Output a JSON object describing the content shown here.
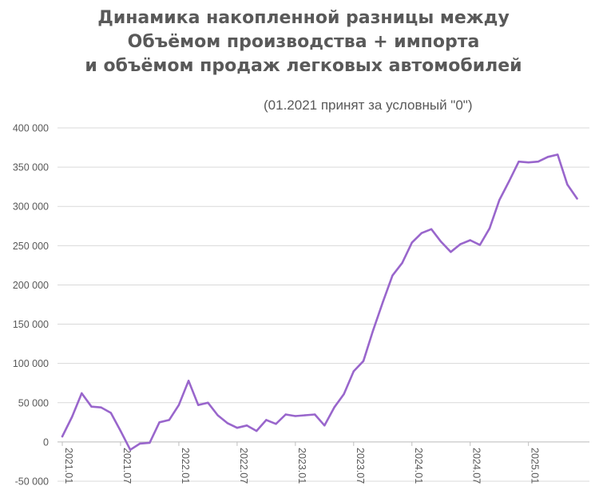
{
  "chart_data": {
    "type": "line",
    "title_lines": [
      "Динамика накопленной разницы между",
      "Объёмом производства + импорта",
      "и объёмом продаж легковых автомобилей"
    ],
    "subtitle": "(01.2021 принят за условный \"0\")",
    "ylim": [
      -50000,
      400000
    ],
    "y_ticks": [
      -50000,
      0,
      50000,
      100000,
      150000,
      200000,
      250000,
      300000,
      350000,
      400000
    ],
    "y_tick_labels": [
      "-50 000",
      "0",
      "50 000",
      "100 000",
      "150 000",
      "200 000",
      "250 000",
      "300 000",
      "350 000",
      "400 000"
    ],
    "x_tick_labels": [
      "2021.01",
      "2021.07",
      "2022.01",
      "2022.07",
      "2023.01",
      "2023.07",
      "2024.01",
      "2024.07",
      "2025.01"
    ],
    "x_tick_step_months": 6,
    "grid": true,
    "legend": "none",
    "line_color": "#9966CC",
    "series": [
      {
        "values": [
          7000,
          32000,
          62000,
          45000,
          44000,
          37000,
          14000,
          -10000,
          -2000,
          -1000,
          25000,
          28000,
          47000,
          78000,
          47000,
          50000,
          34000,
          24000,
          18000,
          21000,
          14000,
          28000,
          23000,
          35000,
          33000,
          34000,
          35000,
          21000,
          44000,
          61000,
          90000,
          103000,
          142000,
          178000,
          212000,
          228000,
          254000,
          266000,
          271000,
          255000,
          242000,
          252000,
          257000,
          251000,
          272000,
          308000,
          332000,
          357000,
          356000,
          357000,
          363000,
          366000,
          328000,
          310000
        ]
      }
    ]
  }
}
